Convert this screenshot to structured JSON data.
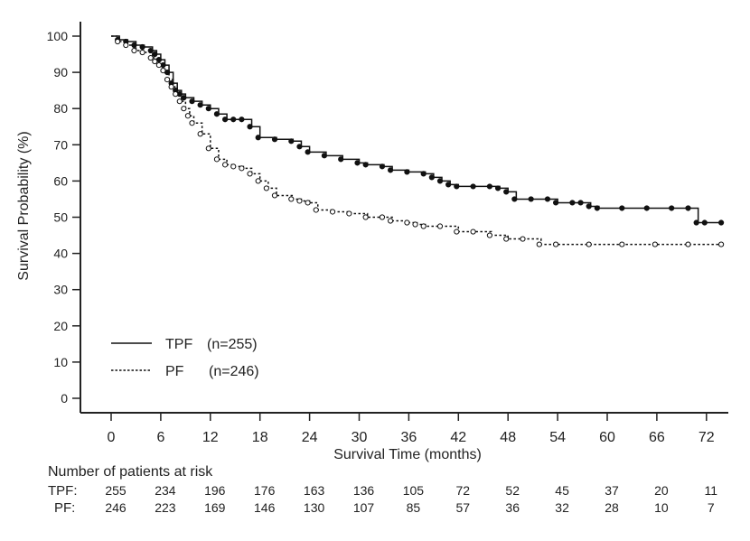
{
  "chart_data": {
    "type": "line",
    "title": "",
    "xlabel": "Survival Time (months)",
    "ylabel": "Survival Probability (%)",
    "xlim": [
      -3.8,
      74.5
    ],
    "ylim": [
      -4,
      104
    ],
    "xticks": [
      0,
      6,
      12,
      18,
      24,
      30,
      36,
      42,
      48,
      54,
      60,
      66,
      72
    ],
    "yticks": [
      0,
      10,
      20,
      30,
      40,
      50,
      60,
      70,
      80,
      90,
      100
    ],
    "grid": false,
    "legend_position": "bottom-left",
    "colors": {
      "line": "#111111",
      "axis": "#222222"
    },
    "series": [
      {
        "name": "TPF (n=255)",
        "legend_name": "TPF",
        "legend_n": "(n=255)",
        "style": "solid",
        "x": [
          0,
          1,
          2,
          3,
          4,
          5,
          5.5,
          6,
          6.5,
          7,
          7.5,
          8,
          8.5,
          9,
          10,
          11,
          12,
          13,
          14,
          15,
          16,
          17,
          18,
          20,
          22,
          23,
          24,
          26,
          28,
          30,
          31,
          33,
          34,
          36,
          38,
          39,
          40,
          41,
          42,
          44,
          46,
          47,
          48,
          49,
          51,
          53,
          54,
          56,
          57,
          58,
          59,
          62,
          65,
          68,
          70,
          71,
          72,
          74
        ],
        "y": [
          100,
          99,
          98.5,
          97.5,
          97,
          96,
          95,
          93.5,
          92,
          90,
          87,
          85,
          84,
          83,
          82,
          81,
          80,
          78.5,
          77,
          77,
          77,
          75,
          72,
          71.5,
          71,
          69.5,
          68,
          67,
          66,
          65,
          64.5,
          64,
          63,
          62.5,
          62,
          61,
          60,
          59,
          58.5,
          58.5,
          58.5,
          58,
          57,
          55,
          55,
          55,
          54,
          54,
          54,
          53,
          52.5,
          52.5,
          52.5,
          52.5,
          52.5,
          48.5,
          48.5,
          48.5
        ],
        "censor_marks": "filled-circle"
      },
      {
        "name": "PF (n=246)",
        "legend_name": "PF",
        "legend_n": "(n=246)",
        "style": "dotted",
        "x": [
          0,
          1,
          2,
          3,
          4,
          5,
          5.5,
          6,
          6.5,
          7,
          7.5,
          8,
          8.5,
          9,
          9.5,
          10,
          11,
          12,
          13,
          14,
          15,
          16,
          17,
          18,
          19,
          20,
          22,
          23,
          24,
          25,
          27,
          29,
          31,
          33,
          34,
          36,
          37,
          38,
          40,
          42,
          44,
          46,
          48,
          50,
          52,
          54,
          58,
          62,
          66,
          70,
          74
        ],
        "y": [
          100,
          98.5,
          97.5,
          96,
          95.5,
          94,
          93,
          92,
          90.5,
          88,
          86,
          84,
          82,
          80,
          78,
          76,
          73,
          69,
          66,
          64.5,
          64,
          63.5,
          62,
          60,
          58,
          56,
          55,
          54.5,
          54,
          52,
          51.5,
          51,
          50,
          50,
          49,
          48.5,
          48,
          47.5,
          47.5,
          46,
          46,
          45,
          44,
          44,
          42.5,
          42.5,
          42.5,
          42.5,
          42.5,
          42.5,
          42.5
        ],
        "censor_marks": "open-circle"
      }
    ],
    "risk_table": {
      "title": "Number of patients at risk",
      "times": [
        0,
        6,
        12,
        18,
        24,
        30,
        36,
        42,
        48,
        54,
        60,
        66,
        72
      ],
      "rows": [
        {
          "label": "TPF:",
          "values": [
            "255",
            "234",
            "196",
            "176",
            "163",
            "136",
            "105",
            "72",
            "52",
            "45",
            "37",
            "20",
            "11"
          ]
        },
        {
          "label": "PF:",
          "values": [
            "246",
            "223",
            "169",
            "146",
            "130",
            "107",
            "85",
            "57",
            "36",
            "32",
            "28",
            "10",
            "7"
          ]
        }
      ]
    }
  }
}
